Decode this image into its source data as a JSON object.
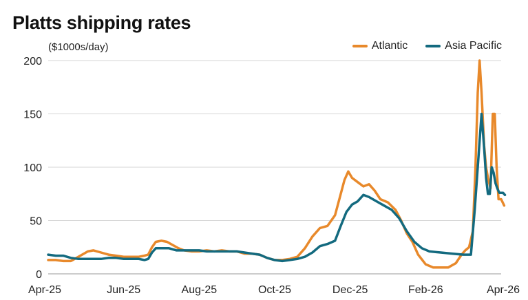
{
  "chart_data": {
    "type": "line",
    "title": "Platts shipping rates",
    "ylabel": "($1000s/day)",
    "xlabel": "",
    "ylim": [
      0,
      200
    ],
    "yticks": [
      0,
      50,
      100,
      150,
      200
    ],
    "xticks": [
      "Apr-25",
      "Jun-25",
      "Aug-25",
      "Oct-25",
      "Dec-25",
      "Feb-26",
      "Apr-26"
    ],
    "grid": true,
    "legend_position": "top-right",
    "x_range": [
      0,
      12
    ],
    "series": [
      {
        "name": "Atlantic",
        "color": "#e8892b",
        "points": [
          [
            0.0,
            13
          ],
          [
            0.2,
            13
          ],
          [
            0.4,
            12
          ],
          [
            0.6,
            12
          ],
          [
            0.75,
            15
          ],
          [
            0.9,
            18
          ],
          [
            1.05,
            21
          ],
          [
            1.2,
            22
          ],
          [
            1.4,
            20
          ],
          [
            1.6,
            18
          ],
          [
            1.8,
            17
          ],
          [
            2.0,
            16
          ],
          [
            2.2,
            16
          ],
          [
            2.4,
            16
          ],
          [
            2.55,
            17
          ],
          [
            2.65,
            18
          ],
          [
            2.75,
            25
          ],
          [
            2.85,
            30
          ],
          [
            3.0,
            31
          ],
          [
            3.15,
            30
          ],
          [
            3.3,
            27
          ],
          [
            3.45,
            24
          ],
          [
            3.6,
            22
          ],
          [
            3.8,
            21
          ],
          [
            4.0,
            21
          ],
          [
            4.2,
            22
          ],
          [
            4.4,
            21
          ],
          [
            4.6,
            22
          ],
          [
            4.8,
            21
          ],
          [
            5.0,
            21
          ],
          [
            5.2,
            19
          ],
          [
            5.4,
            19
          ],
          [
            5.6,
            18
          ],
          [
            5.8,
            15
          ],
          [
            6.0,
            13
          ],
          [
            6.2,
            13
          ],
          [
            6.4,
            14
          ],
          [
            6.6,
            16
          ],
          [
            6.8,
            24
          ],
          [
            7.0,
            35
          ],
          [
            7.2,
            43
          ],
          [
            7.4,
            45
          ],
          [
            7.6,
            55
          ],
          [
            7.75,
            75
          ],
          [
            7.85,
            88
          ],
          [
            7.95,
            96
          ],
          [
            8.05,
            90
          ],
          [
            8.2,
            86
          ],
          [
            8.35,
            82
          ],
          [
            8.5,
            84
          ],
          [
            8.65,
            78
          ],
          [
            8.8,
            70
          ],
          [
            9.0,
            67
          ],
          [
            9.2,
            60
          ],
          [
            9.35,
            50
          ],
          [
            9.5,
            38
          ],
          [
            9.65,
            30
          ],
          [
            9.8,
            18
          ],
          [
            10.0,
            9
          ],
          [
            10.2,
            6
          ],
          [
            10.4,
            6
          ],
          [
            10.6,
            6
          ],
          [
            10.8,
            10
          ],
          [
            10.95,
            18
          ],
          [
            11.05,
            22
          ],
          [
            11.15,
            25
          ],
          [
            11.25,
            40
          ],
          [
            11.32,
            100
          ],
          [
            11.38,
            170
          ],
          [
            11.43,
            200
          ],
          [
            11.48,
            170
          ],
          [
            11.55,
            120
          ],
          [
            11.6,
            100
          ],
          [
            11.65,
            90
          ],
          [
            11.72,
            80
          ],
          [
            11.78,
            150
          ],
          [
            11.83,
            150
          ],
          [
            11.88,
            100
          ],
          [
            11.93,
            70
          ],
          [
            12.0,
            70
          ],
          [
            12.08,
            64
          ]
        ]
      },
      {
        "name": "Asia Pacific",
        "color": "#136a7f",
        "points": [
          [
            0.0,
            18
          ],
          [
            0.2,
            17
          ],
          [
            0.4,
            17
          ],
          [
            0.6,
            15
          ],
          [
            0.8,
            14
          ],
          [
            1.0,
            14
          ],
          [
            1.2,
            14
          ],
          [
            1.4,
            14
          ],
          [
            1.6,
            15
          ],
          [
            1.8,
            15
          ],
          [
            2.0,
            14
          ],
          [
            2.2,
            14
          ],
          [
            2.4,
            14
          ],
          [
            2.55,
            13
          ],
          [
            2.65,
            14
          ],
          [
            2.75,
            20
          ],
          [
            2.85,
            24
          ],
          [
            3.0,
            24
          ],
          [
            3.2,
            24
          ],
          [
            3.4,
            22
          ],
          [
            3.6,
            22
          ],
          [
            3.8,
            22
          ],
          [
            4.0,
            22
          ],
          [
            4.2,
            21
          ],
          [
            4.4,
            21
          ],
          [
            4.6,
            21
          ],
          [
            4.8,
            21
          ],
          [
            5.0,
            21
          ],
          [
            5.2,
            20
          ],
          [
            5.4,
            19
          ],
          [
            5.6,
            18
          ],
          [
            5.8,
            15
          ],
          [
            6.0,
            13
          ],
          [
            6.2,
            12
          ],
          [
            6.4,
            13
          ],
          [
            6.6,
            14
          ],
          [
            6.8,
            16
          ],
          [
            7.0,
            20
          ],
          [
            7.2,
            26
          ],
          [
            7.4,
            28
          ],
          [
            7.6,
            31
          ],
          [
            7.75,
            45
          ],
          [
            7.9,
            58
          ],
          [
            8.05,
            65
          ],
          [
            8.2,
            68
          ],
          [
            8.35,
            74
          ],
          [
            8.5,
            72
          ],
          [
            8.7,
            68
          ],
          [
            8.9,
            64
          ],
          [
            9.1,
            60
          ],
          [
            9.3,
            52
          ],
          [
            9.5,
            40
          ],
          [
            9.7,
            30
          ],
          [
            9.9,
            24
          ],
          [
            10.1,
            21
          ],
          [
            10.4,
            20
          ],
          [
            10.7,
            19
          ],
          [
            11.0,
            18
          ],
          [
            11.2,
            18
          ],
          [
            11.3,
            60
          ],
          [
            11.4,
            110
          ],
          [
            11.48,
            150
          ],
          [
            11.55,
            118
          ],
          [
            11.6,
            90
          ],
          [
            11.65,
            75
          ],
          [
            11.7,
            75
          ],
          [
            11.75,
            100
          ],
          [
            11.8,
            95
          ],
          [
            11.85,
            85
          ],
          [
            11.9,
            80
          ],
          [
            11.95,
            76
          ],
          [
            12.05,
            76
          ],
          [
            12.1,
            74
          ]
        ]
      }
    ]
  }
}
